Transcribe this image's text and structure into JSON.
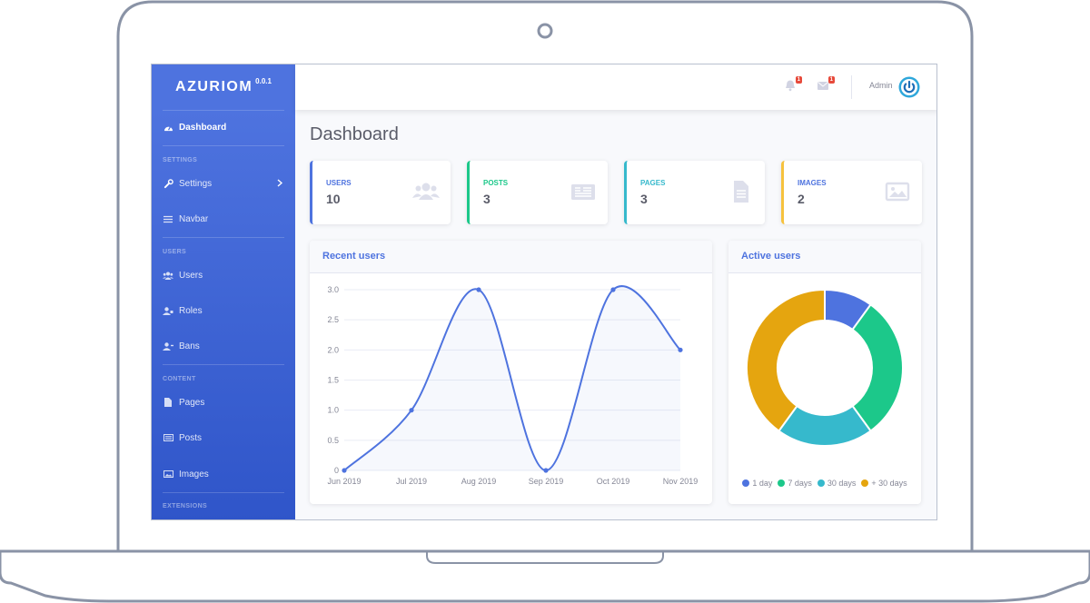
{
  "brand": {
    "name": "AZURIOM",
    "version": "0.0.1"
  },
  "sidebar": {
    "items": [
      {
        "type": "item",
        "label": "Dashboard",
        "icon": "tachometer-icon",
        "active": true
      },
      {
        "type": "heading",
        "label": "SETTINGS"
      },
      {
        "type": "item",
        "label": "Settings",
        "icon": "wrench-icon",
        "chevron": true
      },
      {
        "type": "item",
        "label": "Navbar",
        "icon": "bars-icon"
      },
      {
        "type": "heading",
        "label": "USERS"
      },
      {
        "type": "item",
        "label": "Users",
        "icon": "users-icon"
      },
      {
        "type": "item",
        "label": "Roles",
        "icon": "user-tag-icon"
      },
      {
        "type": "item",
        "label": "Bans",
        "icon": "user-slash-icon"
      },
      {
        "type": "heading",
        "label": "CONTENT"
      },
      {
        "type": "item",
        "label": "Pages",
        "icon": "file-icon"
      },
      {
        "type": "item",
        "label": "Posts",
        "icon": "newspaper-icon"
      },
      {
        "type": "item",
        "label": "Images",
        "icon": "image-icon"
      },
      {
        "type": "heading",
        "label": "EXTENSIONS"
      }
    ]
  },
  "topbar": {
    "notifications": {
      "icon": "bell-icon",
      "count": "1"
    },
    "messages": {
      "icon": "envelope-icon",
      "count": "1"
    },
    "user": {
      "name": "Admin",
      "avatar_icon": "power-icon"
    }
  },
  "page": {
    "title": "Dashboard"
  },
  "stats": [
    {
      "label": "USERS",
      "value": "10",
      "color": "#4e73df",
      "icon": "users-icon"
    },
    {
      "label": "POSTS",
      "value": "3",
      "color": "#1cc88a",
      "icon": "newspaper-icon"
    },
    {
      "label": "PAGES",
      "value": "3",
      "color": "#36b9cc",
      "icon": "file-icon"
    },
    {
      "label": "IMAGES",
      "value": "2",
      "color": "#f6c23e",
      "icon": "image-icon"
    }
  ],
  "recent_users": {
    "title": "Recent users"
  },
  "active_users": {
    "title": "Active users"
  },
  "colors": {
    "primary": "#4e73df",
    "success": "#1cc88a",
    "info": "#36b9cc",
    "warning": "#e5a50f",
    "sidebar_bottom": "#2f55c9"
  },
  "chart_data": [
    {
      "type": "line",
      "x": [
        "Jun 2019",
        "Jul 2019",
        "Aug 2019",
        "Sep 2019",
        "Oct 2019",
        "Nov 2019"
      ],
      "y_ticks": [
        "0",
        "0.5",
        "1.0",
        "1.5",
        "2.0",
        "2.5",
        "3.0"
      ],
      "ylim": [
        0,
        3
      ],
      "series": [
        {
          "values": [
            0,
            1,
            3,
            0,
            3,
            2
          ]
        }
      ],
      "grid": true,
      "area_fill": true
    },
    {
      "type": "pie",
      "labels": [
        "1 day",
        "7 days",
        "30 days",
        "+ 30 days"
      ],
      "values": [
        1,
        3,
        2,
        4
      ],
      "colors": [
        "#4e73df",
        "#1cc88a",
        "#36b9cc",
        "#e5a50f"
      ],
      "donut": true,
      "legend": "bottom"
    }
  ]
}
